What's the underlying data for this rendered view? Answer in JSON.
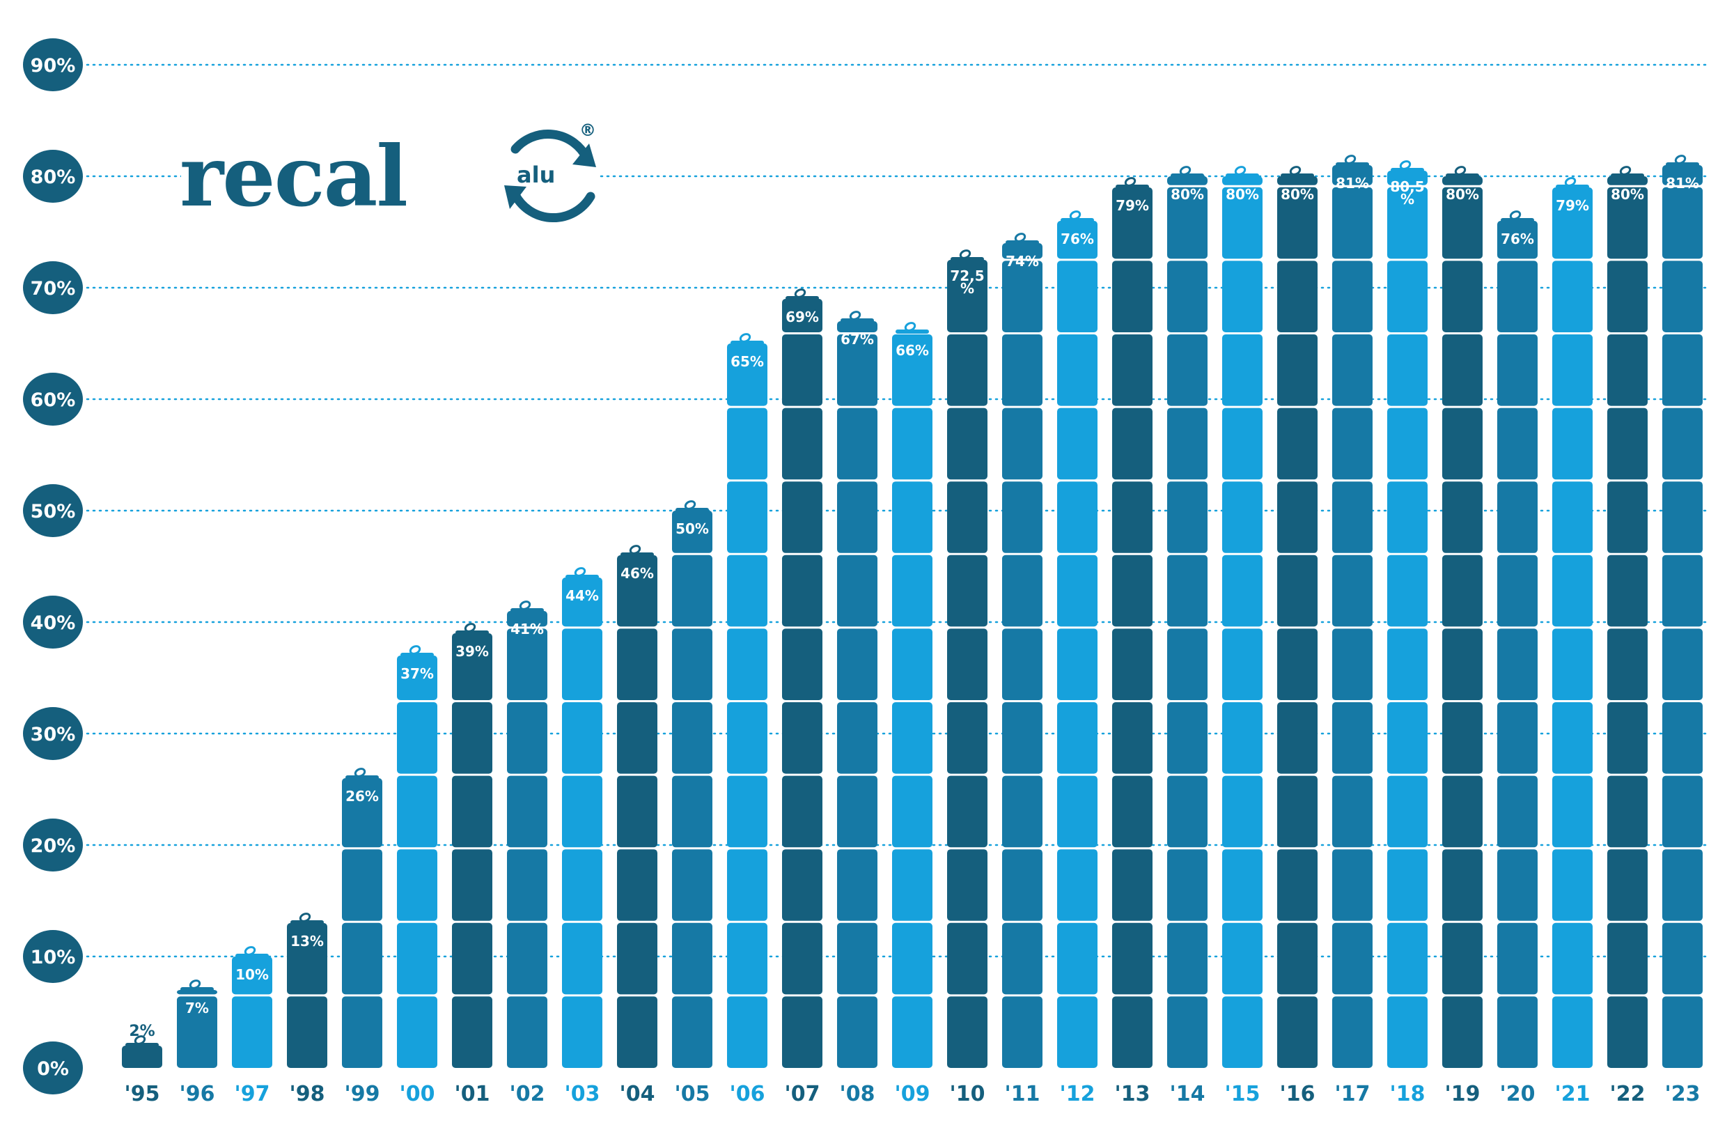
{
  "logo": {
    "word": "recal",
    "sub": "alu",
    "mark": "®"
  },
  "colors": {
    "dark": "#155f7d",
    "mid": "#1679a5",
    "light": "#16a1dc",
    "grid": "#16a1dc"
  },
  "chart_data": {
    "type": "bar",
    "title": "",
    "xlabel": "",
    "ylabel": "",
    "ylim": [
      0,
      90
    ],
    "yticks": [
      0,
      10,
      20,
      30,
      40,
      50,
      60,
      70,
      80,
      90
    ],
    "ytick_labels": [
      "0%",
      "10%",
      "20%",
      "30%",
      "40%",
      "50%",
      "60%",
      "70%",
      "80%",
      "90%"
    ],
    "grid": true,
    "categories": [
      "'95",
      "'96",
      "'97",
      "'98",
      "'99",
      "'00",
      "'01",
      "'02",
      "'03",
      "'04",
      "'05",
      "'06",
      "'07",
      "'08",
      "'09",
      "'10",
      "'11",
      "'12",
      "'13",
      "'14",
      "'15",
      "'16",
      "'17",
      "'18",
      "'19",
      "'20",
      "'21",
      "'22",
      "'23"
    ],
    "values": [
      2,
      7,
      10,
      13,
      26,
      37,
      39,
      41,
      44,
      46,
      50,
      65,
      69,
      67,
      66,
      72.5,
      74,
      76,
      79,
      80,
      80,
      80,
      81,
      80.5,
      80,
      76,
      79,
      80,
      81
    ],
    "labels": [
      "2%",
      "7%",
      "10%",
      "13%",
      "26%",
      "37%",
      "39%",
      "41%",
      "44%",
      "46%",
      "50%",
      "65%",
      "69%",
      "67%",
      "66%",
      "72,5 %",
      "74%",
      "76%",
      "79%",
      "80%",
      "80%",
      "80%",
      "81%",
      "80,5 %",
      "80%",
      "76%",
      "79%",
      "80%",
      "81%"
    ],
    "bar_colors": [
      "dark",
      "mid",
      "light",
      "dark",
      "mid",
      "light",
      "dark",
      "mid",
      "light",
      "dark",
      "mid",
      "light",
      "dark",
      "mid",
      "light",
      "dark",
      "mid",
      "light",
      "dark",
      "mid",
      "light",
      "dark",
      "mid",
      "light",
      "dark",
      "mid",
      "light",
      "dark",
      "mid"
    ]
  }
}
